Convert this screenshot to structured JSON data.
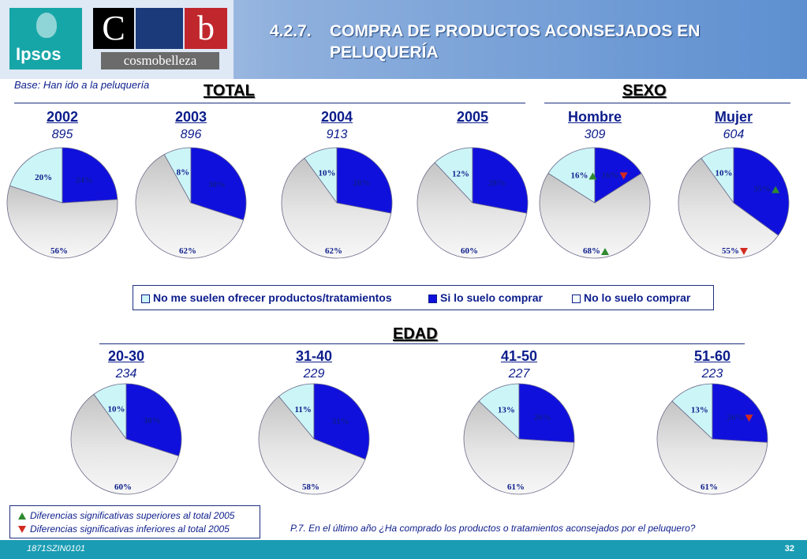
{
  "header": {
    "ipsos_logo": "Ipsos",
    "cb_letters": [
      "C",
      "b"
    ],
    "cosmo_logo": "cosmobelleza",
    "section_number": "4.2.7.",
    "title": "COMPRA DE PRODUCTOS ACONSEJADOS EN PELUQUERÍA"
  },
  "base_note": "Base: Han ido a la peluquería",
  "sections": {
    "total": "TOTAL",
    "sexo": "SEXO",
    "edad": "EDAD"
  },
  "colors": {
    "no_ofrecer": "#ccf5f7",
    "si_compra": "#1010dd",
    "no_compra": "#dcdcdc",
    "sig_up": "#2f8a2f",
    "sig_down": "#d22b1f"
  },
  "legend": [
    {
      "label": "No me suelen ofrecer productos/tratamientos",
      "color": "#ccf5f7"
    },
    {
      "label": "Si lo suelo comprar",
      "color": "#1010dd"
    },
    {
      "label": "No lo suelo comprar",
      "color": "#f4fdfd"
    }
  ],
  "chart_data": {
    "type": "pie",
    "slice_order": [
      "No me suelen ofrecer productos/tratamientos",
      "Si lo suelo comprar",
      "No lo suelo comprar"
    ],
    "top_row": [
      {
        "label": "2002",
        "n": "895",
        "values": [
          20,
          24,
          56
        ],
        "sig": [
          null,
          null,
          null
        ]
      },
      {
        "label": "2003",
        "n": "896",
        "values": [
          8,
          30,
          62
        ],
        "sig": [
          null,
          null,
          null
        ]
      },
      {
        "label": "2004",
        "n": "913",
        "values": [
          10,
          28,
          62
        ],
        "sig": [
          null,
          null,
          null
        ]
      },
      {
        "label": "2005",
        "n": "",
        "values": [
          12,
          28,
          60
        ],
        "sig": [
          null,
          null,
          null
        ]
      },
      {
        "label": "Hombre",
        "n": "309",
        "values": [
          16,
          16,
          68
        ],
        "sig": [
          "up",
          "down",
          "up"
        ]
      },
      {
        "label": "Mujer",
        "n": "604",
        "values": [
          10,
          35,
          55
        ],
        "sig": [
          null,
          "up",
          "down"
        ]
      }
    ],
    "bottom_row": [
      {
        "label": "20-30",
        "n": "234",
        "values": [
          10,
          30,
          60
        ],
        "sig": [
          null,
          null,
          null
        ]
      },
      {
        "label": "31-40",
        "n": "229",
        "values": [
          11,
          31,
          58
        ],
        "sig": [
          null,
          null,
          null
        ]
      },
      {
        "label": "41-50",
        "n": "227",
        "values": [
          13,
          26,
          61
        ],
        "sig": [
          null,
          null,
          null
        ]
      },
      {
        "label": "51-60",
        "n": "223",
        "values": [
          13,
          26,
          61
        ],
        "sig": [
          null,
          "down",
          null
        ]
      }
    ]
  },
  "significance": {
    "up": "Diferencias significativas superiores al total 2005",
    "down": "Diferencias significativas inferiores al total 2005"
  },
  "question": "P.7.   En el último año ¿Ha comprado los productos o tratamientos aconsejados por el peluquero?",
  "footer": {
    "code": "1871SZIN0101",
    "page": "32"
  }
}
